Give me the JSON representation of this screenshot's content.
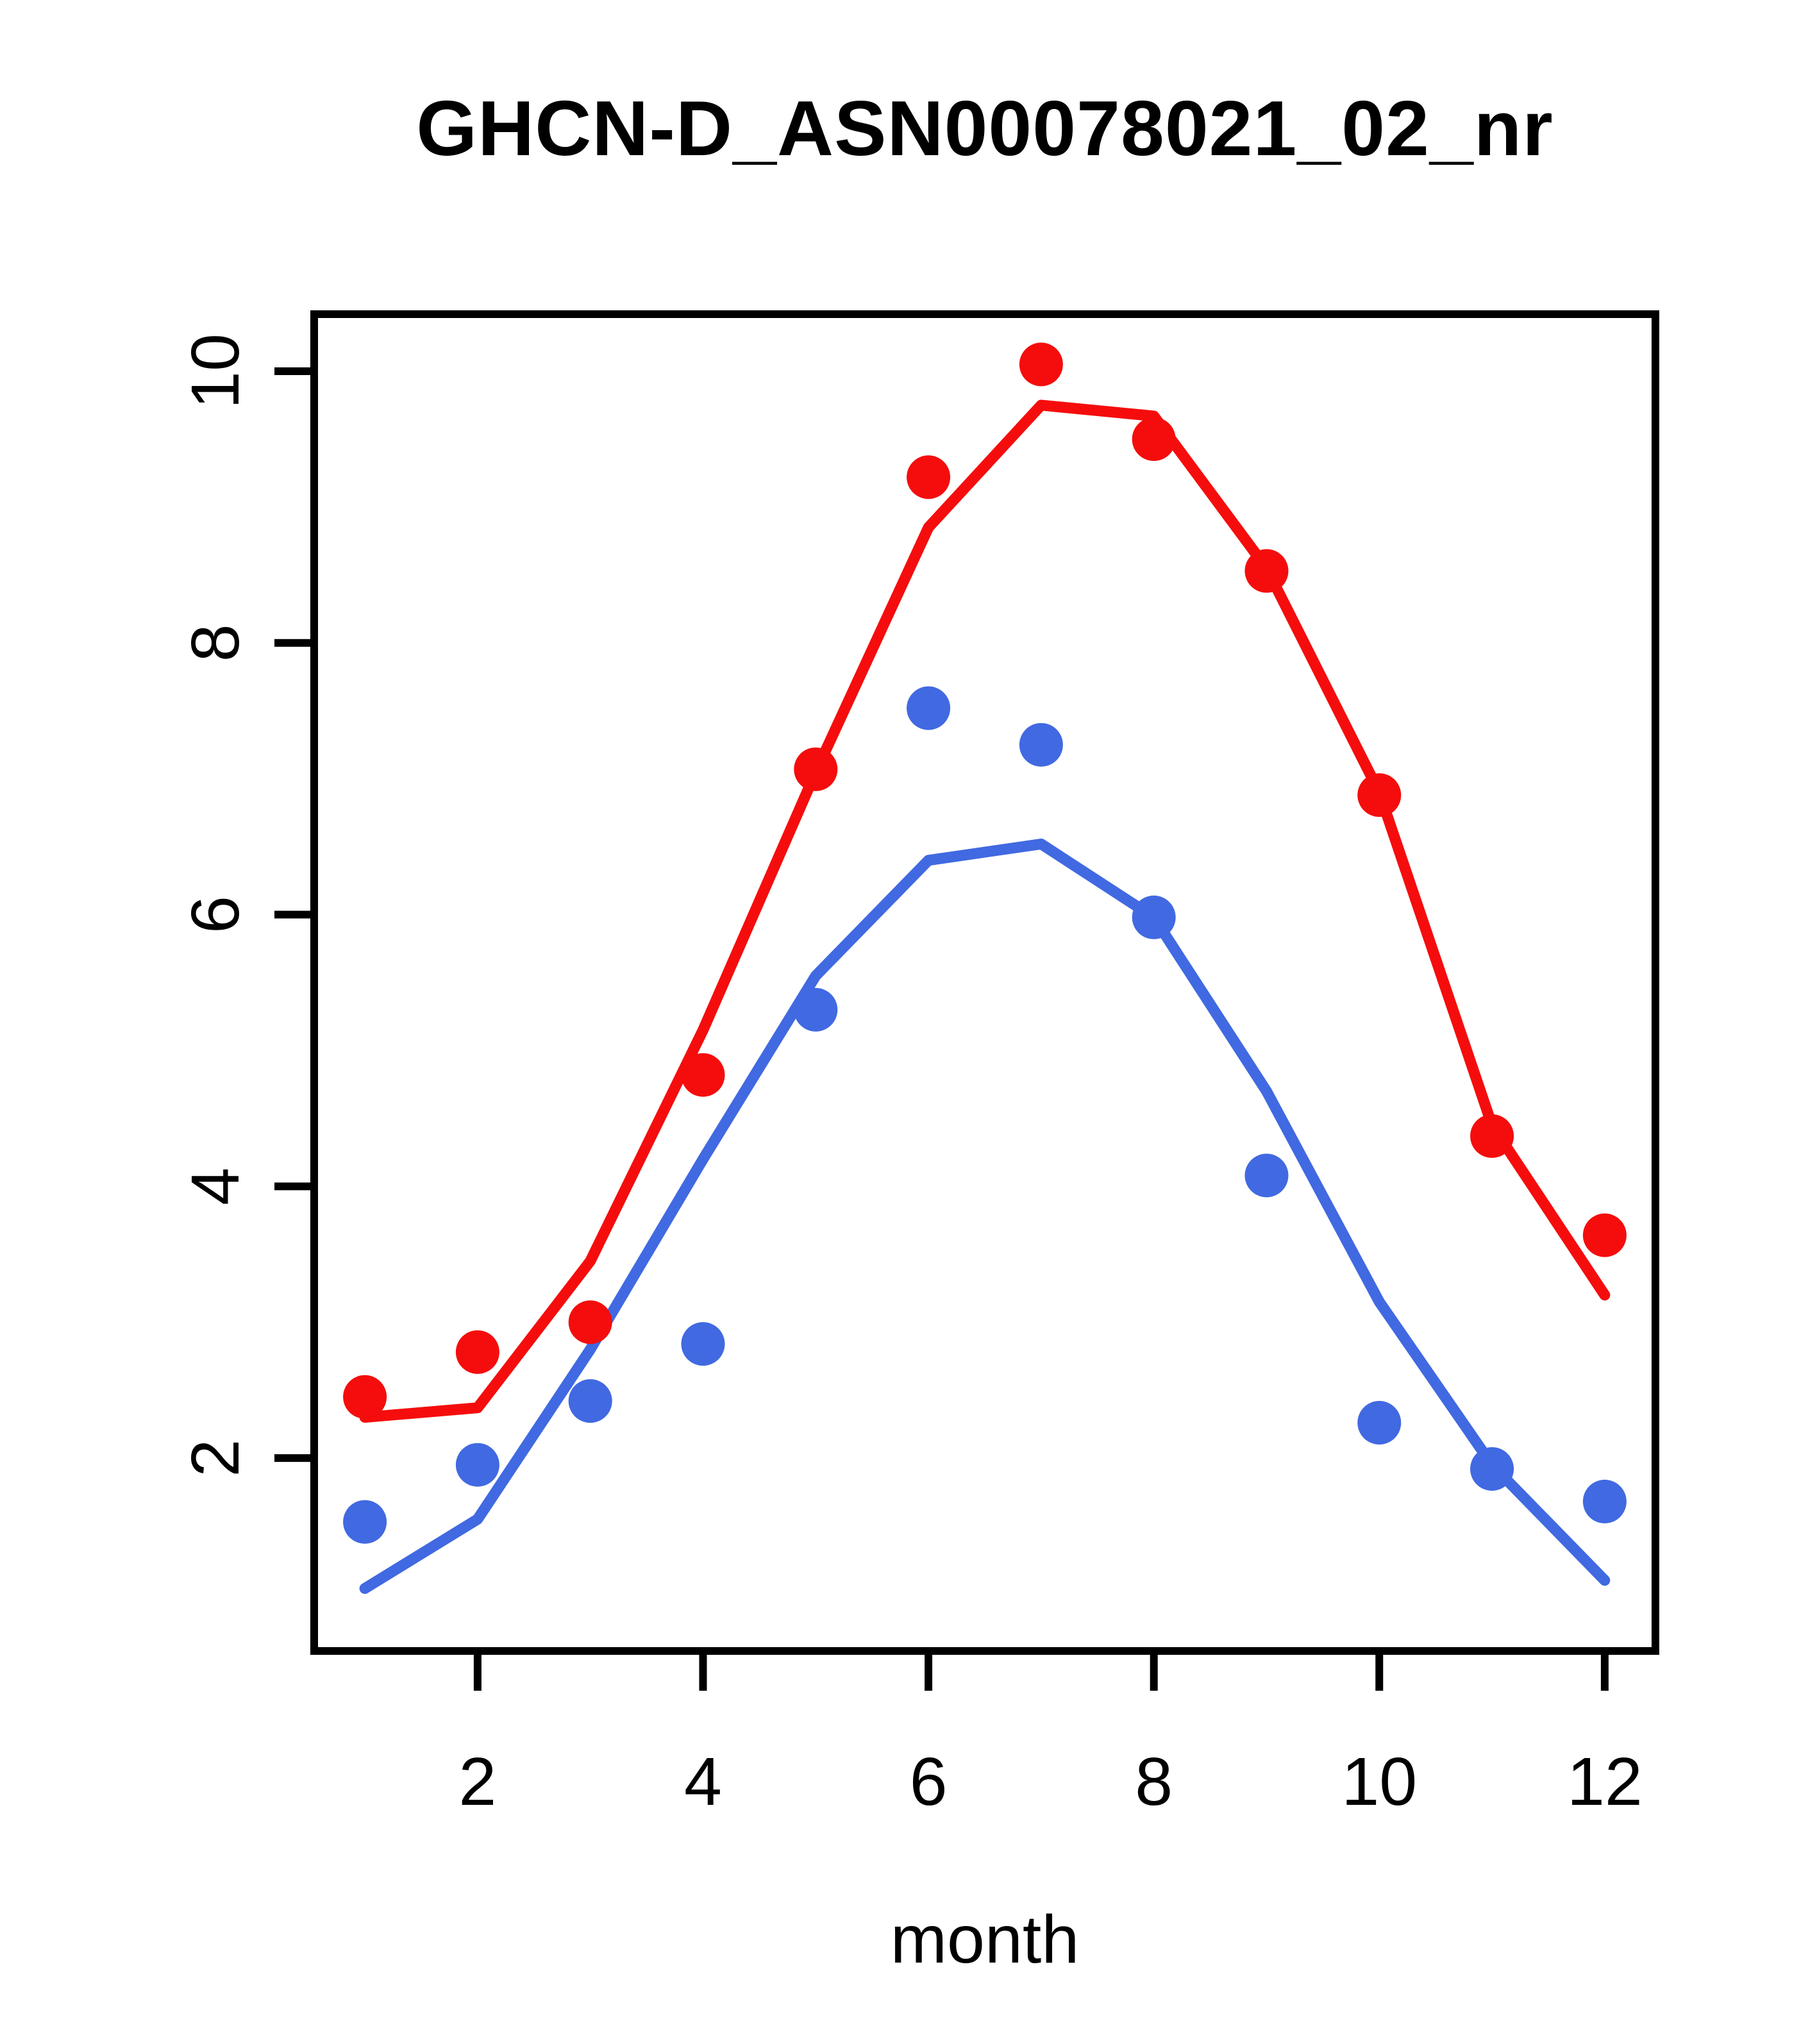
{
  "chart_data": {
    "type": "scatter",
    "title": "GHCN-D_ASN00078021_02_nr",
    "xlabel": "month",
    "ylabel": "",
    "grid": false,
    "legend": "none",
    "x": [
      1,
      2,
      3,
      4,
      5,
      6,
      7,
      8,
      9,
      10,
      11,
      12
    ],
    "xticks": [
      2,
      4,
      6,
      8,
      10,
      12
    ],
    "yticks": [
      2,
      4,
      6,
      8,
      10
    ],
    "xlim": [
      0.55,
      12.45
    ],
    "ylim": [
      0.58,
      10.42
    ],
    "colors": {
      "series1": "#F50D0D",
      "series2": "#4169E1",
      "axis": "#000000"
    },
    "series": [
      {
        "name": "red-fit-line",
        "style": "line",
        "color": "#F50D0D",
        "values": [
          2.3,
          2.37,
          3.45,
          5.15,
          7.05,
          8.85,
          9.75,
          9.67,
          8.55,
          6.9,
          4.45,
          3.2
        ]
      },
      {
        "name": "blue-fit-line",
        "style": "line",
        "color": "#4169E1",
        "values": [
          1.04,
          1.55,
          2.8,
          4.2,
          5.55,
          6.4,
          6.52,
          5.98,
          4.7,
          3.15,
          1.95,
          1.1
        ]
      },
      {
        "name": "red-points",
        "style": "points",
        "color": "#F50D0D",
        "values": [
          2.45,
          2.78,
          3.0,
          4.82,
          7.07,
          9.22,
          10.05,
          9.5,
          8.53,
          6.88,
          4.37,
          3.64
        ]
      },
      {
        "name": "blue-points",
        "style": "points",
        "color": "#4169E1",
        "values": [
          1.53,
          1.95,
          2.42,
          2.84,
          5.3,
          7.52,
          7.25,
          5.98,
          4.08,
          2.26,
          1.92,
          1.68
        ]
      }
    ]
  }
}
